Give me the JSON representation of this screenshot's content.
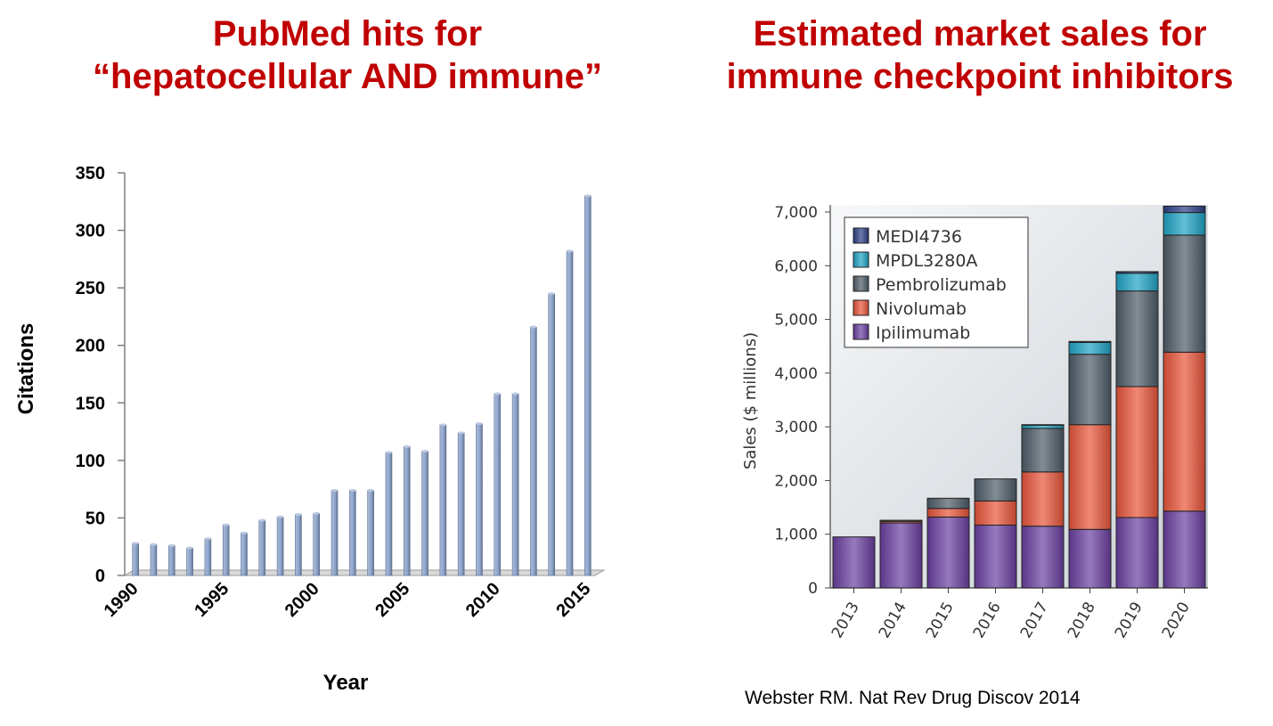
{
  "left": {
    "title_line1": "PubMed hits for",
    "title_line2": "“hepatocellular AND immune”"
  },
  "right": {
    "title_line1": "Estimated market sales for",
    "title_line2": "immune checkpoint inhibitors"
  },
  "citation": "Webster RM. Nat Rev Drug Discov 2014",
  "chart_data": [
    {
      "type": "bar",
      "xlabel": "Year",
      "ylabel": "Citations",
      "ylim": [
        0,
        350
      ],
      "yticks": [
        0,
        50,
        100,
        150,
        200,
        250,
        300,
        350
      ],
      "xtick_labels": [
        "1990",
        "1995",
        "2000",
        "2005",
        "2010",
        "2015"
      ],
      "bar_color": "#8EA4CB",
      "x": [
        1990,
        1991,
        1992,
        1993,
        1994,
        1995,
        1996,
        1997,
        1998,
        1999,
        2000,
        2001,
        2002,
        2003,
        2004,
        2005,
        2006,
        2007,
        2008,
        2009,
        2010,
        2011,
        2012,
        2013,
        2014,
        2015
      ],
      "values": [
        28,
        27,
        26,
        24,
        32,
        44,
        37,
        48,
        51,
        53,
        54,
        74,
        74,
        74,
        107,
        112,
        108,
        131,
        124,
        132,
        158,
        158,
        216,
        245,
        282,
        330
      ],
      "grid": false
    },
    {
      "type": "bar",
      "stacked": true,
      "xlabel": "",
      "ylabel": "Sales ($ millions)",
      "ylim": [
        0,
        7000
      ],
      "yticks": [
        0,
        1000,
        2000,
        3000,
        4000,
        5000,
        6000,
        7000
      ],
      "ytick_labels": [
        "0",
        "1,000",
        "2,000",
        "3,000",
        "4,000",
        "5,000",
        "6,000",
        "7,000"
      ],
      "categories": [
        "2013",
        "2014",
        "2015",
        "2016",
        "2017",
        "2018",
        "2019",
        "2020"
      ],
      "legend_position": "top-left",
      "series": [
        {
          "name": "Ipilimumab",
          "color": "#6B3FA0",
          "values": [
            950,
            1210,
            1320,
            1170,
            1150,
            1090,
            1310,
            1430
          ]
        },
        {
          "name": "Nivolumab",
          "color": "#E8553A",
          "values": [
            0,
            30,
            160,
            450,
            1010,
            1950,
            2440,
            2960
          ]
        },
        {
          "name": "Pembrolizumab",
          "color": "#4E5C68",
          "values": [
            0,
            20,
            190,
            410,
            810,
            1310,
            1780,
            2180
          ]
        },
        {
          "name": "MPDL3280A",
          "color": "#1FA3C4",
          "values": [
            0,
            0,
            0,
            0,
            60,
            220,
            330,
            420
          ]
        },
        {
          "name": "MEDI4736",
          "color": "#2A3E86",
          "values": [
            0,
            0,
            0,
            0,
            10,
            20,
            30,
            120
          ]
        }
      ],
      "grid": false
    }
  ]
}
